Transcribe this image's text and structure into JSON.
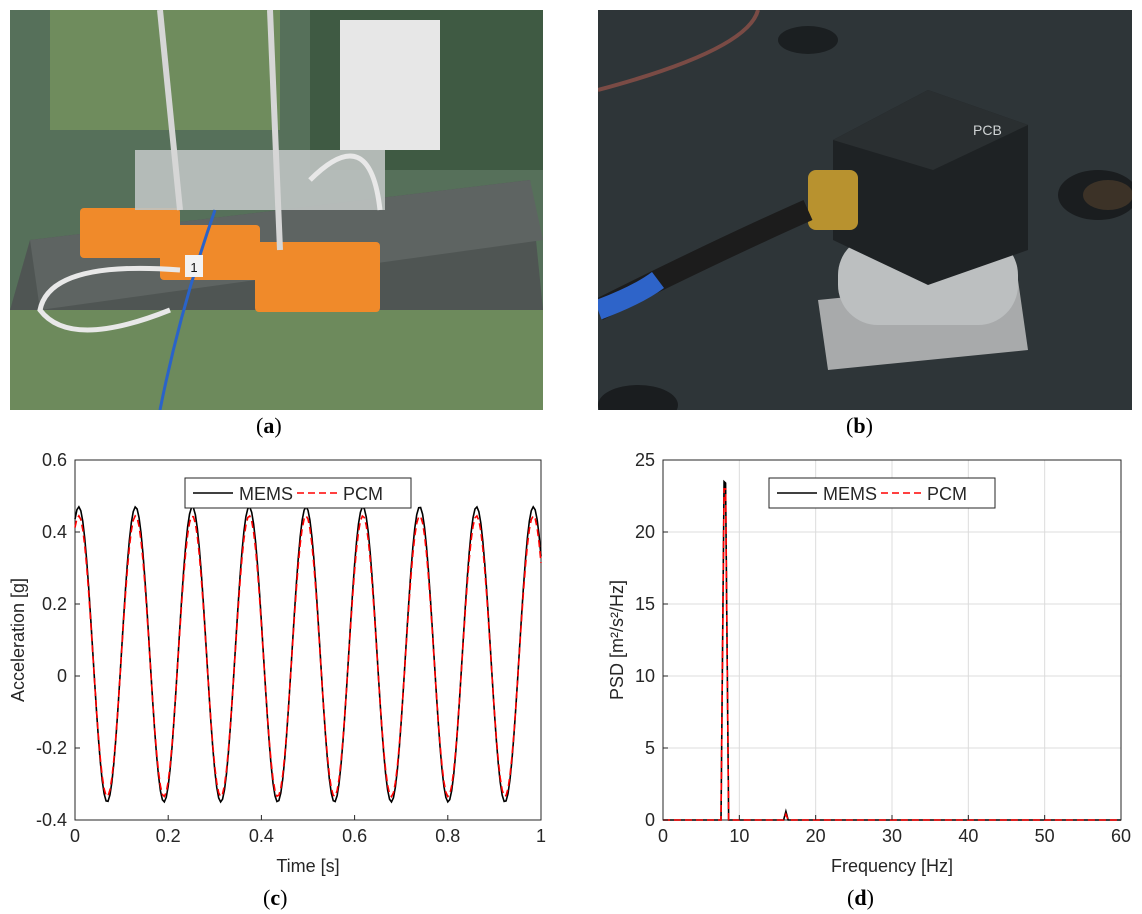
{
  "captions": {
    "a": {
      "open": "(",
      "letter": "a",
      "close": ")"
    },
    "b": {
      "open": "(",
      "letter": "b",
      "close": ")"
    },
    "c": {
      "open": "(",
      "letter": "c",
      "close": ")"
    },
    "d": {
      "open": "(",
      "letter": "d",
      "close": ")"
    }
  },
  "photo_a": {
    "label_on_sensor": "1"
  },
  "photo_b": {
    "brand_mark": "PCB"
  },
  "chart_data": [
    {
      "panel": "c",
      "type": "line",
      "title": "",
      "xlabel": "Time [s]",
      "ylabel": "Acceleration [g]",
      "xlim": [
        0,
        1
      ],
      "ylim": [
        -0.4,
        0.6
      ],
      "xticks": [
        "0",
        "0.2",
        "0.4",
        "0.6",
        "0.8",
        "1"
      ],
      "yticks": [
        "-0.4",
        "-0.2",
        "0",
        "0.2",
        "0.4",
        "0.6"
      ],
      "grid": false,
      "legend_position": "top-center",
      "series": [
        {
          "name": "MEMS",
          "color": "#000000",
          "style": "solid",
          "frequency_hz": 8.2,
          "amplitude_g": 0.41,
          "offset_g": 0.06
        },
        {
          "name": "PCM",
          "color": "#ff0000",
          "style": "dashed",
          "frequency_hz": 8.2,
          "amplitude_g": 0.39,
          "offset_g": 0.055
        }
      ]
    },
    {
      "panel": "d",
      "type": "line",
      "title": "",
      "xlabel": "Frequency [Hz]",
      "ylabel": "PSD [m²/s²/Hz]",
      "xlim": [
        0,
        60
      ],
      "ylim": [
        0,
        25
      ],
      "xticks": [
        "0",
        "10",
        "20",
        "30",
        "40",
        "50",
        "60"
      ],
      "yticks": [
        "0",
        "5",
        "10",
        "15",
        "20",
        "25"
      ],
      "grid": true,
      "legend_position": "top-center",
      "series": [
        {
          "name": "MEMS",
          "color": "#000000",
          "style": "solid",
          "x": [
            0,
            7.6,
            8.0,
            8.2,
            8.6,
            15.8,
            16.1,
            16.4,
            60
          ],
          "y": [
            0,
            0,
            23.5,
            23.4,
            0,
            0,
            0.6,
            0,
            0
          ]
        },
        {
          "name": "PCM",
          "color": "#ff0000",
          "style": "dashed",
          "x": [
            0,
            7.6,
            8.0,
            8.2,
            8.6,
            15.8,
            16.1,
            16.4,
            60
          ],
          "y": [
            0,
            0,
            23.0,
            23.0,
            0,
            0,
            0.4,
            0,
            0
          ]
        }
      ]
    }
  ]
}
